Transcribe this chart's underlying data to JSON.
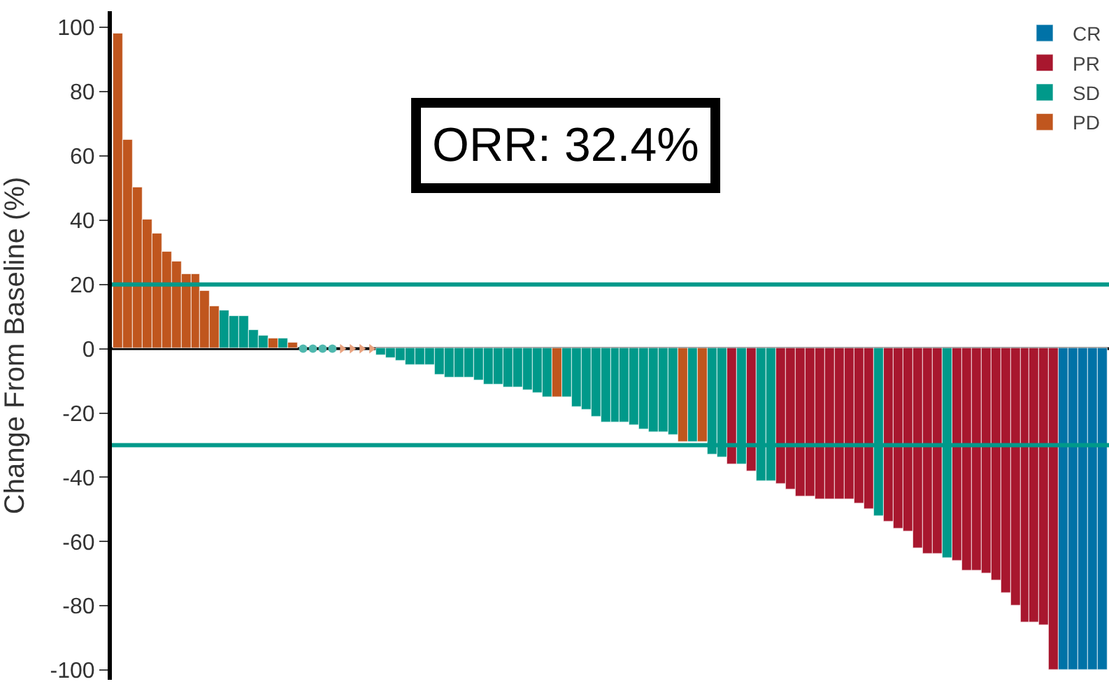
{
  "chart_data": {
    "type": "bar",
    "stacked": true,
    "ylabel": "Change From Baseline (%)",
    "categories": [
      null,
      null,
      null,
      null,
      null,
      null,
      null,
      null,
      null,
      null,
      null,
      null,
      null,
      null,
      null,
      null,
      null,
      null,
      null,
      null,
      null,
      null,
      null,
      null,
      null,
      null,
      null,
      null,
      null,
      null,
      null,
      null,
      null,
      null,
      null,
      null,
      null,
      null,
      null,
      null,
      null,
      null,
      null,
      null,
      null,
      null,
      null,
      null,
      null,
      null,
      null,
      null,
      null,
      null,
      null,
      null,
      null,
      null,
      null,
      null,
      null,
      null,
      null,
      null,
      null,
      null,
      null,
      null,
      null,
      null,
      null,
      null,
      null,
      null,
      null,
      null,
      null,
      null,
      null,
      null,
      null,
      null,
      null,
      null,
      null,
      null,
      null,
      null,
      null,
      null,
      null,
      null,
      null,
      null,
      null,
      null,
      null,
      null,
      null,
      null,
      null,
      null
    ],
    "series": [
      {
        "name": "CR",
        "color": "#0072a7",
        "values": [
          null,
          null,
          null,
          null,
          null,
          null,
          null,
          null,
          null,
          null,
          null,
          null,
          null,
          null,
          null,
          null,
          null,
          null,
          null,
          null,
          null,
          null,
          null,
          null,
          null,
          null,
          null,
          null,
          null,
          null,
          null,
          null,
          null,
          null,
          null,
          null,
          null,
          null,
          null,
          null,
          null,
          null,
          null,
          null,
          null,
          null,
          null,
          null,
          null,
          null,
          null,
          null,
          null,
          null,
          null,
          null,
          null,
          null,
          null,
          null,
          null,
          null,
          null,
          null,
          null,
          null,
          null,
          null,
          null,
          null,
          null,
          null,
          null,
          null,
          null,
          null,
          null,
          null,
          null,
          null,
          null,
          null,
          null,
          null,
          null,
          null,
          null,
          null,
          null,
          null,
          null,
          null,
          null,
          null,
          null,
          null,
          null,
          -100,
          -100,
          -100,
          -100,
          -100
        ]
      },
      {
        "name": "PR",
        "color": "#a8172e",
        "values": [
          null,
          null,
          null,
          null,
          null,
          null,
          null,
          null,
          null,
          null,
          null,
          null,
          null,
          null,
          null,
          null,
          null,
          null,
          null,
          null,
          null,
          null,
          null,
          null,
          null,
          null,
          null,
          null,
          null,
          null,
          null,
          null,
          null,
          null,
          null,
          null,
          null,
          null,
          null,
          null,
          null,
          null,
          null,
          null,
          null,
          null,
          null,
          null,
          null,
          null,
          null,
          null,
          null,
          null,
          null,
          null,
          null,
          null,
          null,
          null,
          null,
          null,
          null,
          -36,
          null,
          -38,
          null,
          null,
          -42,
          -44,
          -46,
          -46,
          -47,
          -47,
          -47,
          -47,
          -48,
          -50,
          null,
          -54,
          -56,
          -57,
          -62,
          -64,
          -64,
          null,
          -66,
          -69,
          -69,
          -70,
          -72,
          -76,
          -80,
          -85,
          -85,
          -86,
          -100,
          null,
          null,
          null,
          null,
          null
        ]
      },
      {
        "name": "SD",
        "color": "#00998a",
        "values": [
          null,
          null,
          null,
          null,
          null,
          null,
          null,
          null,
          null,
          null,
          null,
          12,
          10,
          10,
          6,
          4,
          null,
          3,
          null,
          null,
          null,
          null,
          null,
          null,
          null,
          null,
          null,
          -2,
          -3,
          -4,
          -5,
          -5,
          -5,
          -8,
          -9,
          -9,
          -9,
          -10,
          -11,
          -11,
          -12,
          -12,
          -13,
          -14,
          -15,
          null,
          -15,
          -18,
          -19,
          -21,
          -23,
          -23,
          -23,
          -24,
          -25,
          -26,
          -26,
          -27,
          null,
          -29,
          null,
          -33,
          -34,
          null,
          -36,
          null,
          -41,
          -41,
          null,
          null,
          null,
          null,
          null,
          null,
          null,
          null,
          null,
          null,
          -52,
          null,
          null,
          null,
          null,
          null,
          null,
          -65,
          null,
          null,
          null,
          null,
          null,
          null,
          null,
          null,
          null,
          null,
          null,
          null,
          null,
          null,
          null,
          null
        ]
      },
      {
        "name": "PD",
        "color": "#c0561e",
        "values": [
          98,
          65,
          50,
          40,
          36,
          30,
          27,
          23,
          23,
          18,
          13,
          null,
          null,
          null,
          null,
          null,
          3,
          null,
          2,
          null,
          null,
          null,
          null,
          null,
          null,
          null,
          null,
          null,
          null,
          null,
          null,
          null,
          null,
          null,
          null,
          null,
          null,
          null,
          null,
          null,
          null,
          null,
          null,
          null,
          null,
          -15,
          null,
          null,
          null,
          null,
          null,
          null,
          null,
          null,
          null,
          null,
          null,
          null,
          -29,
          null,
          -29,
          null,
          null,
          null,
          null,
          null,
          null,
          null,
          null,
          null,
          null,
          null,
          null,
          null,
          null,
          null,
          null,
          null,
          null,
          null,
          null,
          null,
          null,
          null,
          null,
          null,
          null,
          null,
          null,
          null,
          null,
          null,
          null,
          null,
          null,
          null,
          null,
          null,
          null,
          null,
          null,
          null
        ]
      },
      {
        "type": "scatter",
        "marker": "circle",
        "color": "#4fb8ae",
        "values": [
          null,
          null,
          null,
          null,
          null,
          null,
          null,
          null,
          null,
          null,
          null,
          null,
          null,
          null,
          null,
          null,
          null,
          null,
          null,
          0,
          0,
          0,
          0,
          null,
          null,
          null,
          null,
          null,
          null,
          null,
          null,
          null,
          null,
          null,
          null,
          null,
          null,
          null,
          null,
          null,
          null,
          null,
          null,
          null,
          null,
          null,
          null,
          null,
          null,
          null,
          null,
          null,
          null,
          null,
          null,
          null,
          null,
          null,
          null,
          null,
          null,
          null,
          null,
          null,
          null,
          null,
          null,
          null,
          null,
          null,
          null,
          null,
          null,
          null,
          null,
          null,
          null,
          null,
          null,
          null,
          null,
          null,
          null,
          null,
          null,
          null,
          null,
          null,
          null,
          null,
          null,
          null,
          null,
          null,
          null,
          null,
          null,
          null,
          null,
          null,
          null,
          null
        ]
      },
      {
        "type": "scatter",
        "marker": "triangle",
        "color": "#e8a27f",
        "values": [
          null,
          null,
          null,
          null,
          null,
          null,
          null,
          null,
          null,
          null,
          null,
          null,
          null,
          null,
          null,
          null,
          null,
          null,
          null,
          null,
          null,
          null,
          null,
          0,
          0,
          0,
          0,
          null,
          null,
          null,
          null,
          null,
          null,
          null,
          null,
          null,
          null,
          null,
          null,
          null,
          null,
          null,
          null,
          null,
          null,
          null,
          null,
          null,
          null,
          null,
          null,
          null,
          null,
          null,
          null,
          null,
          null,
          null,
          null,
          null,
          null,
          null,
          null,
          null,
          null,
          null,
          null,
          null,
          null,
          null,
          null,
          null,
          null,
          null,
          null,
          null,
          null,
          null,
          null,
          null,
          null,
          null,
          null,
          null,
          null,
          null,
          null,
          null,
          null,
          null,
          null,
          null,
          null,
          null,
          null,
          null,
          null,
          null,
          null,
          null,
          null,
          null
        ]
      }
    ],
    "ylim": [
      -103,
      105
    ],
    "yticks": [
      -100,
      -80,
      -60,
      -40,
      -20,
      0,
      20,
      40,
      60,
      80,
      100
    ],
    "ref_lines": [
      {
        "axis": "y",
        "value": 20,
        "color": "#00998a"
      },
      {
        "axis": "y",
        "value": -30,
        "color": "#00998a"
      }
    ],
    "annotations": [
      "ORR: 32.4%"
    ],
    "legend": "top right",
    "tick_labels": "y"
  }
}
